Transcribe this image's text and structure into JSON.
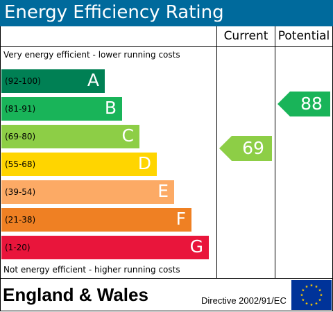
{
  "title": "Energy Efficiency Rating",
  "columns": {
    "current": "Current",
    "potential": "Potential"
  },
  "top_note": "Very energy efficient - lower running costs",
  "bottom_note": "Not energy efficient - higher running costs",
  "bands": [
    {
      "range": "(92-100)",
      "letter": "A",
      "color": "#008054"
    },
    {
      "range": "(81-91)",
      "letter": "B",
      "color": "#19b459"
    },
    {
      "range": "(69-80)",
      "letter": "C",
      "color": "#8dce46"
    },
    {
      "range": "(55-68)",
      "letter": "D",
      "color": "#ffd500"
    },
    {
      "range": "(39-54)",
      "letter": "E",
      "color": "#fcaa65"
    },
    {
      "range": "(21-38)",
      "letter": "F",
      "color": "#ef8023"
    },
    {
      "range": "(1-20)",
      "letter": "G",
      "color": "#e9153b"
    }
  ],
  "current_rating": {
    "value": "69",
    "band": "C",
    "color": "#8dce46"
  },
  "potential_rating": {
    "value": "88",
    "band": "B",
    "color": "#19b459"
  },
  "footer": {
    "country": "England & Wales",
    "directive": "Directive 2002/91/EC"
  },
  "colors": {
    "title_bar": "#006a9c",
    "eu_flag_blue": "#003399",
    "eu_flag_stars": "#ffcc00"
  }
}
